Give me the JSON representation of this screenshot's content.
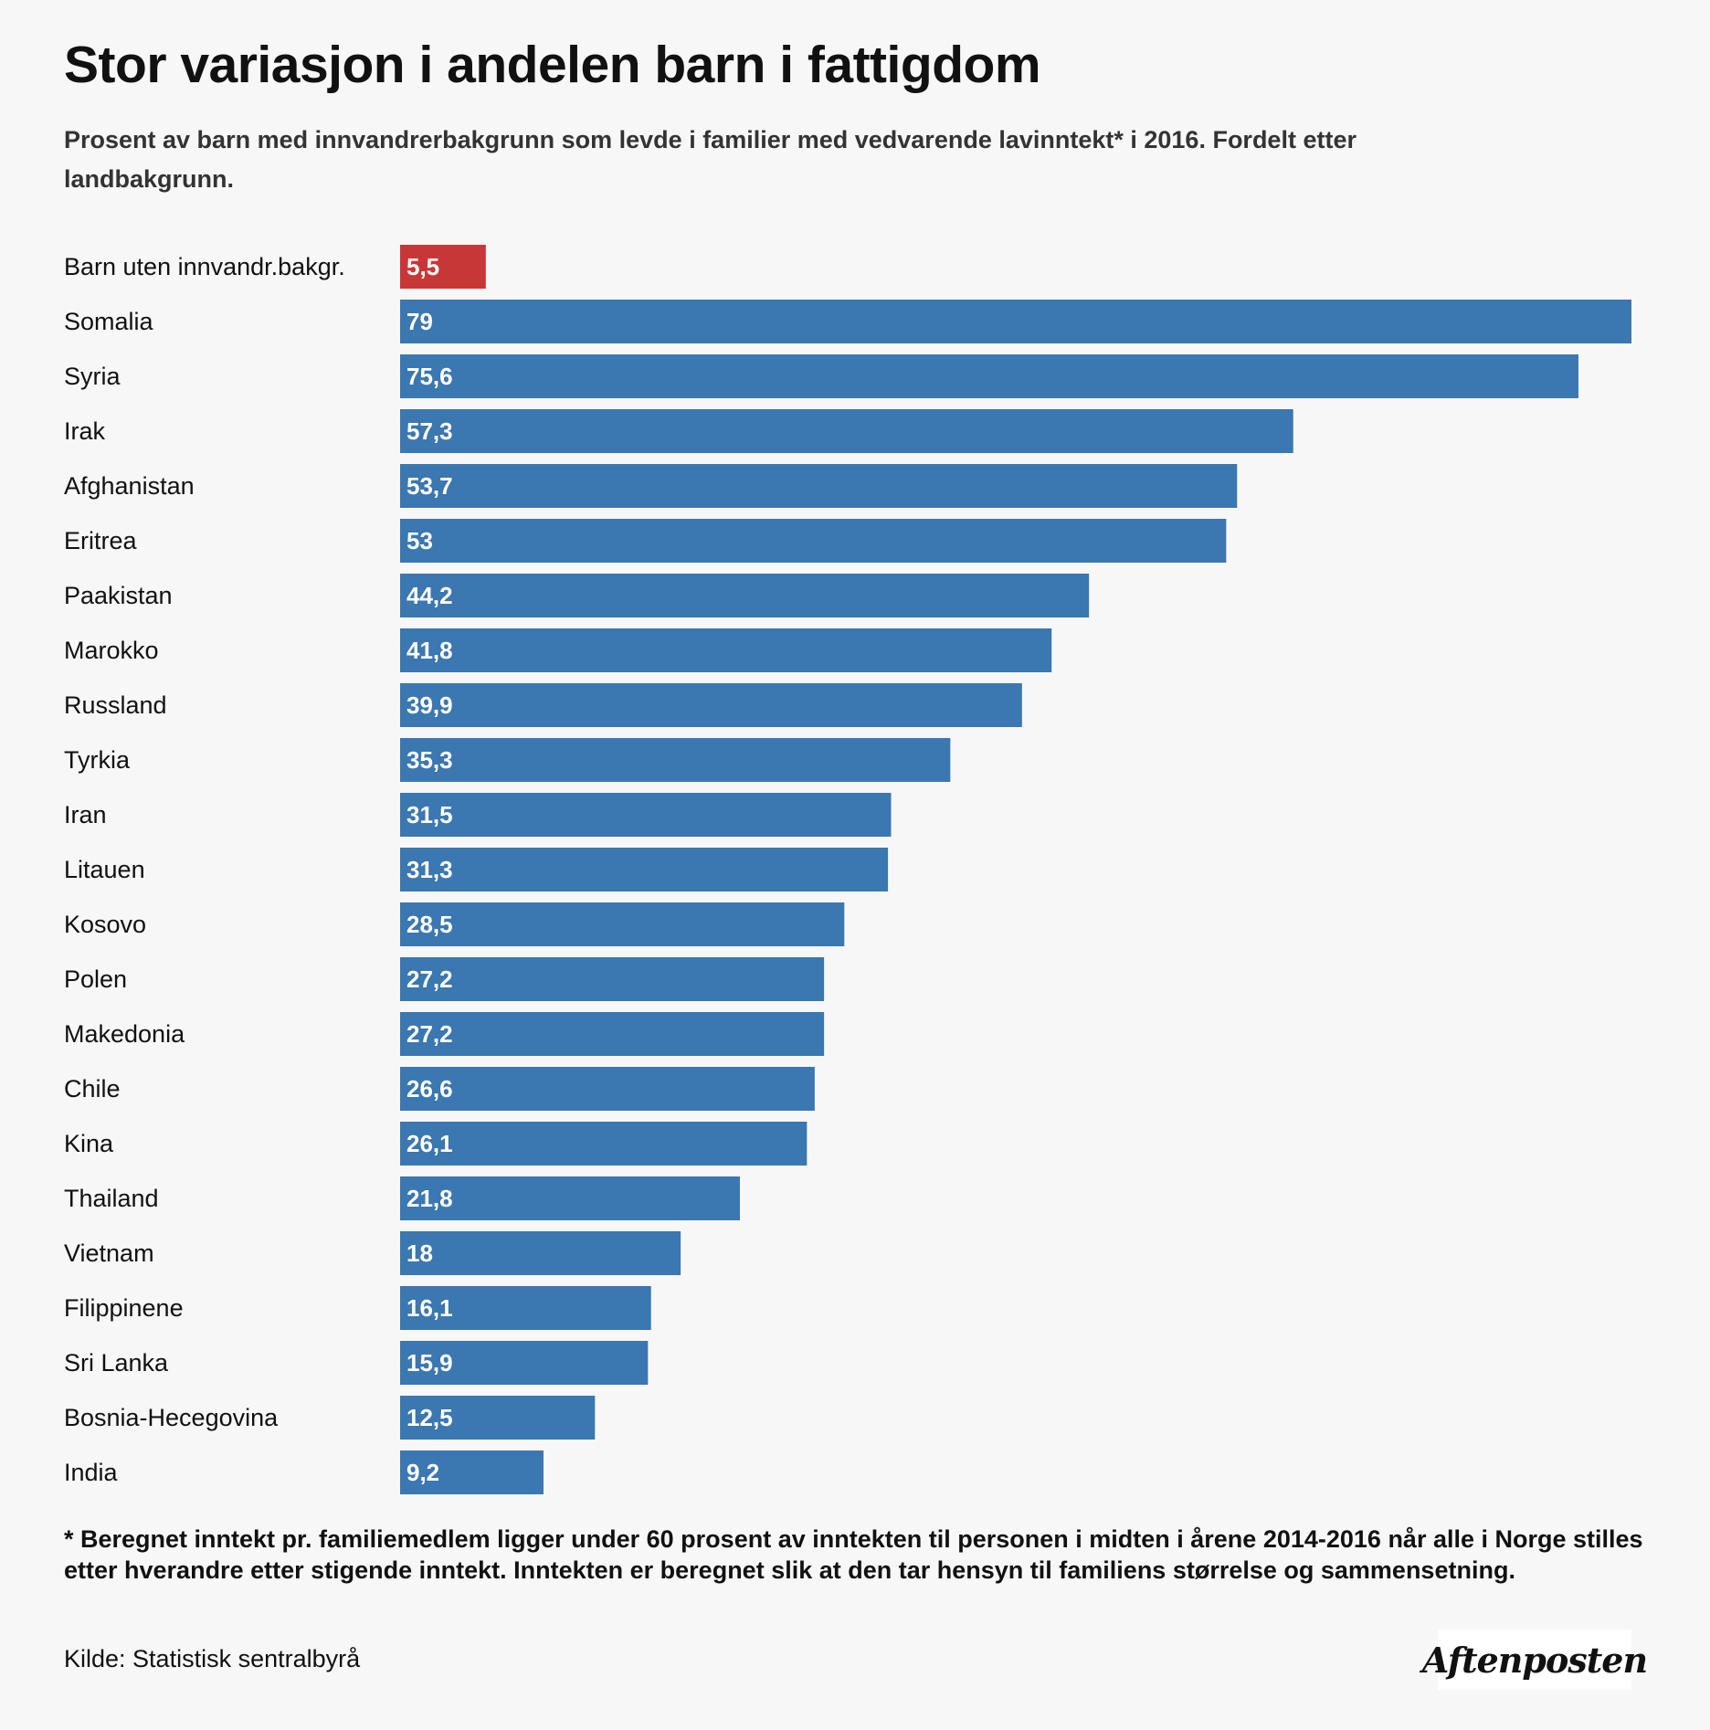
{
  "chart_data": {
    "type": "bar",
    "orientation": "horizontal",
    "title": "Stor variasjon i andelen barn i fattigdom",
    "subtitle": "Prosent av barn med innvandrerbakgrunn som levde i familier med vedvarende lavinntekt* i 2016. Fordelt etter landbakgrunn.",
    "categories": [
      "Barn uten innvandr.bakgr.",
      "Somalia",
      "Syria",
      "Irak",
      "Afghanistan",
      "Eritrea",
      "Paakistan",
      "Marokko",
      "Russland",
      "Tyrkia",
      "Iran",
      "Litauen",
      "Kosovo",
      "Polen",
      "Makedonia",
      "Chile",
      "Kina",
      "Thailand",
      "Vietnam",
      "Filippinene",
      "Sri Lanka",
      "Bosnia-Hecegovina",
      "India"
    ],
    "values": [
      5.5,
      79,
      75.6,
      57.3,
      53.7,
      53,
      44.2,
      41.8,
      39.9,
      35.3,
      31.5,
      31.3,
      28.5,
      27.2,
      27.2,
      26.6,
      26.1,
      21.8,
      18,
      16.1,
      15.9,
      12.5,
      9.2
    ],
    "value_labels": [
      "5,5",
      "79",
      "75,6",
      "57,3",
      "53,7",
      "53",
      "44,2",
      "41,8",
      "39,9",
      "35,3",
      "31,5",
      "31,3",
      "28,5",
      "27,2",
      "27,2",
      "26,6",
      "26,1",
      "21,8",
      "18",
      "16,1",
      "15,9",
      "12,5",
      "9,2"
    ],
    "xlim": [
      0,
      79
    ],
    "colors": {
      "highlight": "#c83737",
      "default": "#3b77b0"
    },
    "highlight_index": 0,
    "grid": false,
    "legend": "none"
  },
  "footnote": "* Beregnet inntekt pr. familiemedlem ligger under 60 prosent av inntekten til personen i midten i årene 2014-2016 når alle i Norge stilles etter hverandre etter stigende inntekt. Inntekten er beregnet slik at den tar hensyn til familiens størrelse og sammensetning.",
  "source": "Kilde: Statistisk sentralbyrå",
  "logo": "Aftenposten"
}
